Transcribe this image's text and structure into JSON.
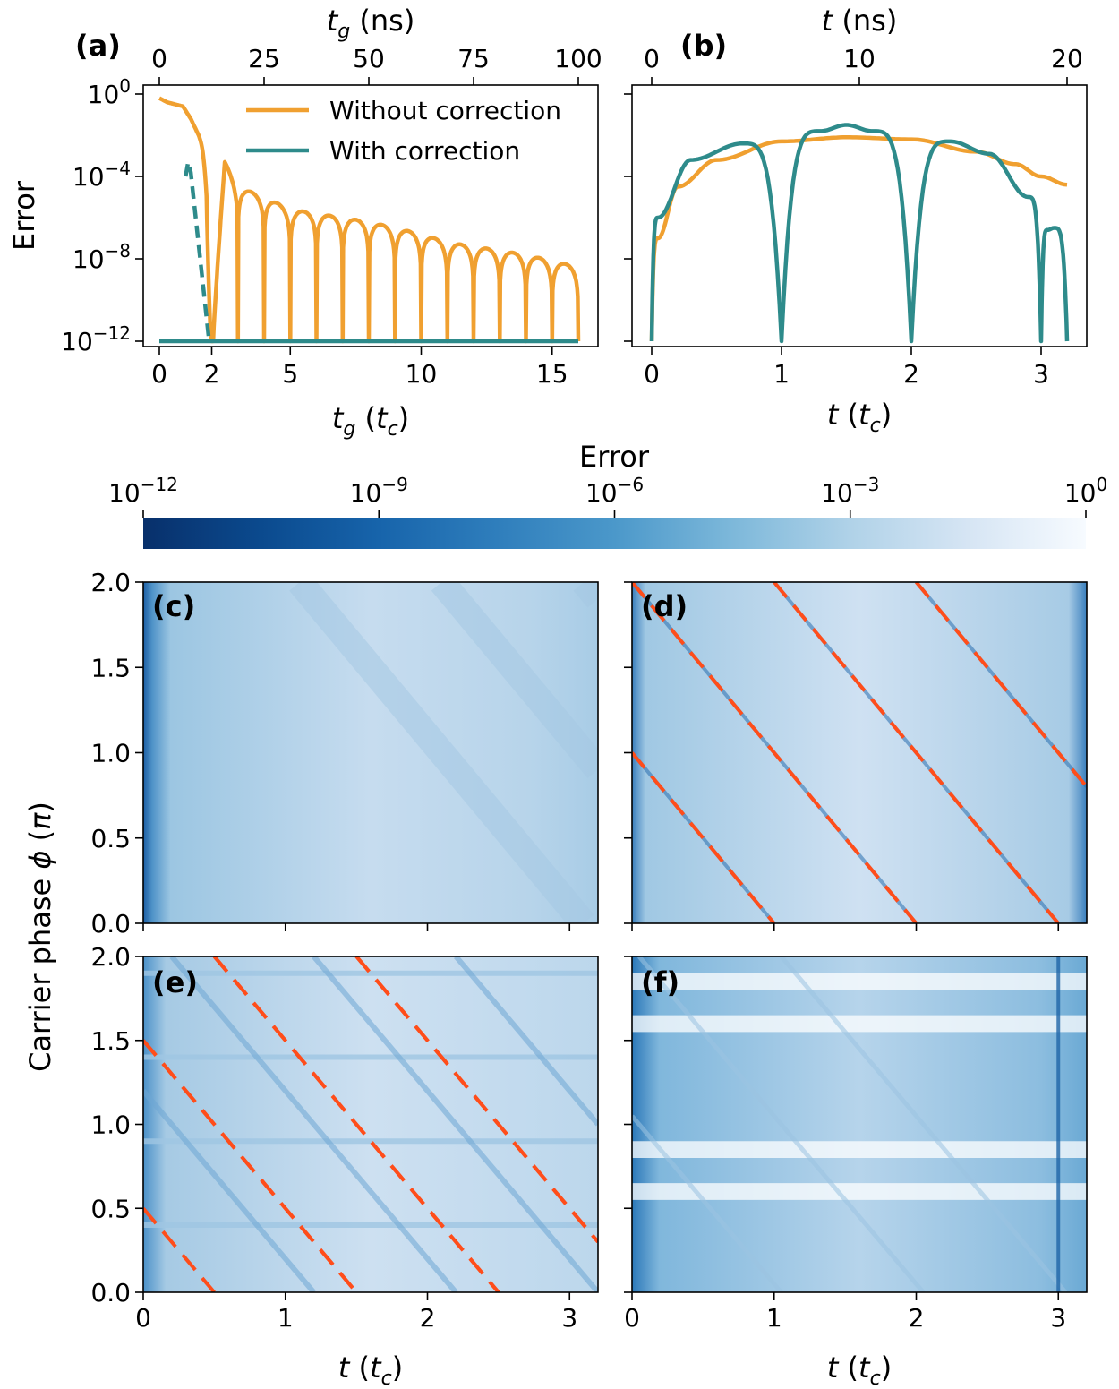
{
  "chart_data": [
    {
      "panel": "a",
      "type": "line",
      "panel_label": "(a)",
      "xlabel_bottom": "t_g (t_c)",
      "xlabel_top": "t_g (ns)",
      "ylabel": "Error",
      "xlim": [
        0,
        16
      ],
      "ylim_log10": [
        -12,
        0
      ],
      "x_ticks_bottom": [
        0,
        2,
        5,
        10,
        15
      ],
      "x_ticks_top": [
        0,
        25,
        50,
        75,
        100
      ],
      "y_ticks_log10": [
        0,
        -4,
        -8,
        -12
      ],
      "y_tick_labels": [
        "10^0",
        "10^-4",
        "10^-8",
        "10^-12"
      ],
      "legend_position": "top-right",
      "series": [
        {
          "name": "Without correction",
          "color": "#f0a030",
          "style": "solid",
          "description": "oscillating error with sharp dips to 1e-12 at integer t_g from 2 to 16",
          "x": [
            0,
            0.3,
            0.6,
            0.9,
            1.2,
            1.5,
            1.8,
            2.0,
            2.5,
            3.0,
            4.0,
            5.0,
            6.0,
            7.0,
            8.0,
            9.0,
            10.0,
            11.0,
            12.0,
            13.0,
            14.0,
            15.0,
            16.0
          ],
          "log10_peak": [
            -0.2,
            -0.4,
            -0.5,
            -0.6,
            -1.2,
            -2.0,
            -3.0,
            -12,
            -3.3,
            -4.5,
            -5.0,
            -5.6,
            -5.8,
            -6.0,
            -6.2,
            -6.5,
            -6.8,
            -7.2,
            -7.4,
            -7.6,
            -7.8,
            -8.1,
            -8.4
          ]
        },
        {
          "name": "With correction",
          "color": "#2e8b8b",
          "style": "solid",
          "description": "flat at 1e-12 across the range",
          "x": [
            0,
            16
          ],
          "log10_y": [
            -12,
            -12
          ]
        },
        {
          "name": "",
          "color": "#2e8b8b",
          "style": "dashed",
          "description": "dashed drop from about 1e-3 at t_g≈1.1 to 1e-12 at t_g≈1.9",
          "x": [
            1.0,
            1.1,
            1.2,
            1.9
          ],
          "log10_y": [
            -4.0,
            -3.3,
            -3.8,
            -12
          ]
        }
      ]
    },
    {
      "panel": "b",
      "type": "line",
      "panel_label": "(b)",
      "xlabel_bottom": "t (t_c)",
      "xlabel_top": "t (ns)",
      "xlim": [
        -0.1,
        3.3
      ],
      "ylim_log10": [
        -12,
        0
      ],
      "x_ticks_bottom": [
        0,
        1,
        2,
        3
      ],
      "x_ticks_top": [
        0,
        10,
        20
      ],
      "y_ticks_log10": [
        0,
        -4,
        -8,
        -12
      ],
      "series": [
        {
          "name": "Without correction",
          "color": "#f0a030",
          "x": [
            0,
            0.05,
            0.2,
            0.5,
            1.0,
            1.5,
            2.0,
            2.5,
            2.8,
            3.0,
            3.2
          ],
          "log10_y": [
            -12,
            -7.0,
            -4.5,
            -3.2,
            -2.3,
            -2.1,
            -2.2,
            -2.8,
            -3.4,
            -4.0,
            -4.4
          ]
        },
        {
          "name": "With correction",
          "color": "#2e8b8b",
          "x": [
            0,
            0.05,
            0.3,
            0.7,
            1.0,
            1.3,
            1.5,
            1.7,
            2.0,
            2.3,
            2.6,
            2.9,
            3.0,
            3.05,
            3.1,
            3.2
          ],
          "log10_y": [
            -12,
            -6.0,
            -3.2,
            -2.4,
            -12,
            -1.8,
            -1.5,
            -1.8,
            -12,
            -2.3,
            -2.9,
            -5.0,
            -12,
            -6.6,
            -6.5,
            -12
          ]
        }
      ]
    },
    {
      "panel": "colorbar",
      "type": "colorbar",
      "title": "Error",
      "colormap": "Blues_r",
      "range_log10": [
        -12,
        0
      ],
      "ticks_log10": [
        -12,
        -9,
        -6,
        -3,
        0
      ],
      "tick_labels": [
        "10^-12",
        "10^-9",
        "10^-6",
        "10^-3",
        "10^0"
      ],
      "color_low": "#08306b",
      "color_high": "#f7fbff"
    },
    {
      "panel": "c",
      "type": "heatmap",
      "panel_label": "(c)",
      "ylabel": "Carrier phase φ (π)",
      "xlim": [
        0,
        3.2
      ],
      "ylim": [
        0,
        2
      ],
      "y_ticks": [
        "0.0",
        "0.5",
        "1.0",
        "1.5",
        "2.0"
      ],
      "description": "near-uniform light blue error, dark strip at t≈0",
      "dashed_lines": []
    },
    {
      "panel": "d",
      "type": "heatmap",
      "panel_label": "(d)",
      "xlim": [
        0,
        3.2
      ],
      "ylim": [
        0,
        2
      ],
      "description": "light blue with dark diagonal minima along phi = k - t",
      "dashed_line_color": "#ff4d1a",
      "dashed_lines": [
        {
          "slope": -1,
          "intercept": 1
        },
        {
          "slope": -1,
          "intercept": 2
        },
        {
          "slope": -1,
          "intercept": 3
        },
        {
          "slope": -1,
          "intercept": 4
        }
      ]
    },
    {
      "panel": "e",
      "type": "heatmap",
      "panel_label": "(e)",
      "ylabel": "Carrier phase φ (π)",
      "xlabel": "t (t_c)",
      "xlim": [
        0,
        3.2
      ],
      "ylim": [
        0,
        2
      ],
      "x_ticks": [
        "0",
        "1",
        "2",
        "3"
      ],
      "y_ticks": [
        "0.0",
        "0.5",
        "1.0",
        "1.5",
        "2.0"
      ],
      "description": "diagonal minima every 1/2 in phi, horizontal bands at phi≈0.4, 0.9, 1.4, 1.9",
      "dashed_line_color": "#ff4d1a",
      "dashed_lines": [
        {
          "slope": -1,
          "intercept": 0.5
        },
        {
          "slope": -1,
          "intercept": 1.5
        },
        {
          "slope": -1,
          "intercept": 2.5
        },
        {
          "slope": -1,
          "intercept": 3.5
        }
      ],
      "dashed_lines_shifted": [
        {
          "slope": -1,
          "intercept": 1.0,
          "offset_t": 0.5
        },
        {
          "slope": -1,
          "intercept": 2.0,
          "offset_t": 0.5
        },
        {
          "slope": -1,
          "intercept": 3.0,
          "offset_t": 0.5
        }
      ]
    },
    {
      "panel": "f",
      "type": "heatmap",
      "panel_label": "(f)",
      "xlabel": "t (t_c)",
      "xlim": [
        0,
        3.2
      ],
      "ylim": [
        0,
        2
      ],
      "x_ticks": [
        "0",
        "1",
        "2",
        "3"
      ],
      "description": "mid blue with white horizontal bands near phi≈0.6, 0.85, 1.6, 1.85, dark vertical line at t=3",
      "dashed_lines": []
    }
  ]
}
